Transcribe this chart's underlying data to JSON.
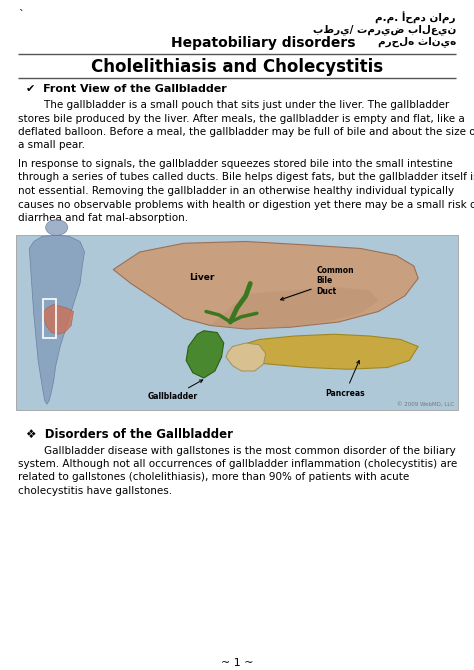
{
  "bg_color": "#ffffff",
  "top_backtick": "`",
  "arabic_line1": "م.م. أحمد نامر",
  "arabic_line2": "بطري/ تمريض بالعين",
  "arabic_line3": "مرحله ثانيه",
  "header_main": "Hepatobiliary disorders",
  "title": "Cholelithiasis and Cholecystitis",
  "section1_header": "✔  Front View of the Gallbladder",
  "para1_lines": [
    "        The gallbladder is a small pouch that sits just under the liver. The gallbladder",
    "stores bile produced by the liver. After meals, the gallbladder is empty and flat, like a",
    "deflated balloon. Before a meal, the gallbladder may be full of bile and about the size of",
    "a small pear."
  ],
  "para2_lines": [
    "In response to signals, the gallbladder squeezes stored bile into the small intestine",
    "through a series of tubes called ducts. Bile helps digest fats, but the gallbladder itself is",
    "not essential. Removing the gallbladder in an otherwise healthy individual typically",
    "causes no observable problems with health or digestion yet there may be a small risk of",
    "diarrhea and fat mal-absorption."
  ],
  "section2_header": "❖  Disorders of the Gallbladder",
  "para3_lines": [
    "        Gallbladder disease with gallstones is the most common disorder of the biliary",
    "system. Although not all occurrences of gallbladder inflammation (cholecystitis) are",
    "related to gallstones (cholelithiasis), more than 90% of patients with acute",
    "cholecystitis have gallstones."
  ],
  "footer": "~ 1 ~",
  "image_bg": "#aec8d8",
  "liver_color": "#c8a080",
  "liver_edge": "#9a7055",
  "gallbladder_color": "#4a8830",
  "pancreas_color": "#c8a840",
  "body_color": "#8099b8",
  "intestine_color": "#cc7055"
}
